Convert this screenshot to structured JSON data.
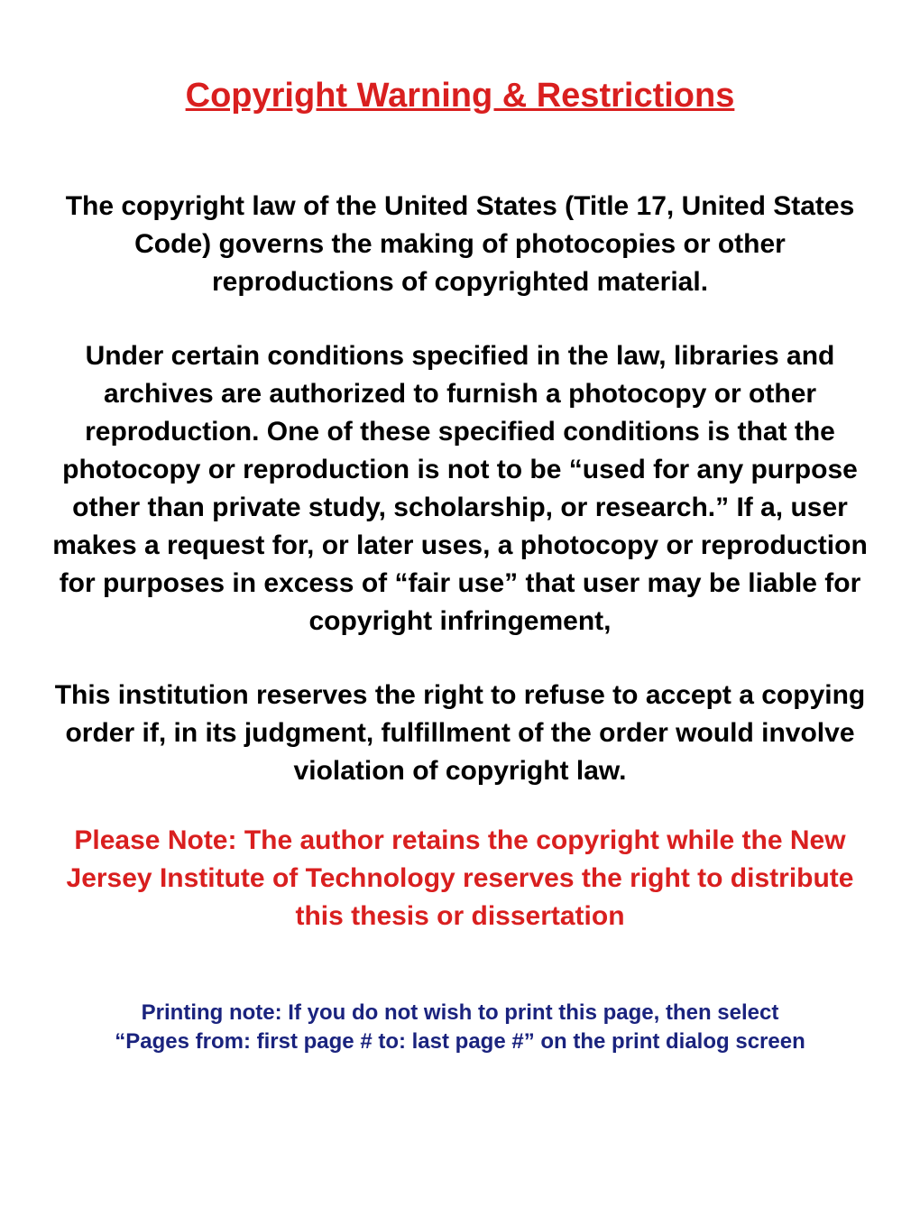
{
  "title": {
    "text": "Copyright Warning & Restrictions",
    "color": "#d91f1f"
  },
  "paragraphs": {
    "p1": {
      "text": "The copyright law of the United States (Title 17, United States Code) governs the making of photocopies or other reproductions of copyrighted material.",
      "color": "#000000"
    },
    "p2": {
      "text": "Under certain conditions specified in the law, libraries and archives are authorized to furnish a photocopy or other reproduction. One of these specified conditions is that the photocopy or reproduction is not to be “used for any purpose other than private study, scholarship, or research.” If a, user makes a request for, or later uses, a photocopy or reproduction for purposes in excess of “fair use” that user may be liable for copyright infringement,",
      "color": "#000000"
    },
    "p3": {
      "text": "This institution reserves the right to refuse to accept a copying order if, in its judgment, fulfillment of the order would involve violation of copyright law.",
      "color": "#000000"
    }
  },
  "note": {
    "text": "Please Note:  The author retains the copyright while the New Jersey Institute of Technology reserves the right to distribute this thesis or dissertation",
    "color": "#d91f1f"
  },
  "printing_note": {
    "line1": "Printing note: If you do not wish to print this page, then select",
    "line2": "“Pages from: first page # to: last page #”  on the print dialog screen",
    "color": "#1a237e"
  },
  "styles": {
    "background_color": "#ffffff",
    "title_fontsize": 38,
    "body_fontsize": 30,
    "printing_fontsize": 24,
    "font_family": "cursive"
  }
}
